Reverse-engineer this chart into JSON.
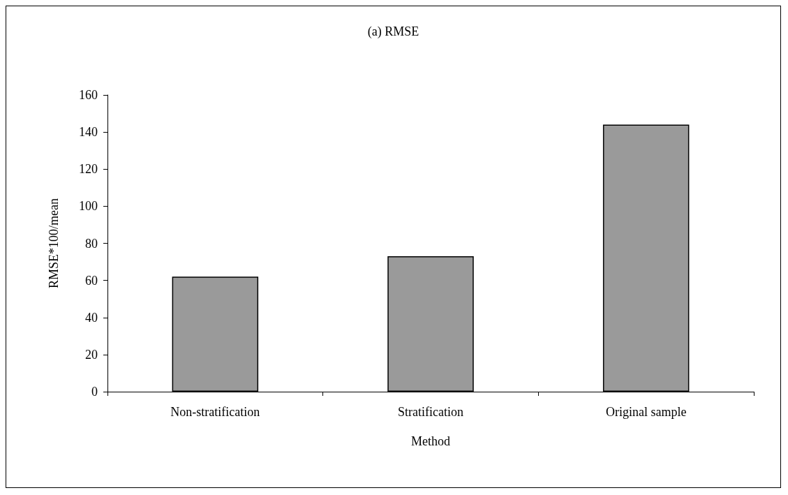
{
  "chart_data": {
    "type": "bar",
    "title": "(a) RMSE",
    "xlabel": "Method",
    "ylabel": "RMSE*100/mean",
    "categories": [
      "Non-stratification",
      "Stratification",
      "Original sample"
    ],
    "values": [
      62,
      73,
      144
    ],
    "color": "#9a9a9a",
    "ylim": [
      0,
      160
    ],
    "yticks": [
      0,
      20,
      40,
      60,
      80,
      100,
      120,
      140,
      160
    ],
    "grid": false
  }
}
